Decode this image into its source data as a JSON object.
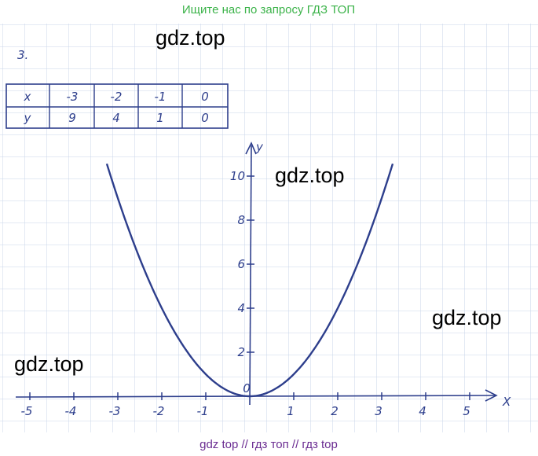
{
  "header": {
    "text": "Ищите нас по запросу ГДЗ ТОП"
  },
  "watermarks": [
    "gdz.top",
    "gdz.top",
    "gdz.top",
    "gdz.top"
  ],
  "problem": {
    "number": "3."
  },
  "table": {
    "rows": [
      [
        "x",
        "-3",
        "-2",
        "-1",
        "0"
      ],
      [
        "y",
        "9",
        "4",
        "1",
        "0"
      ]
    ]
  },
  "graph": {
    "x_axis_label": "X",
    "y_axis_label": "y",
    "origin_label": "0",
    "x_tick_labels": [
      "-5",
      "-4",
      "-3",
      "-2",
      "-1",
      "1",
      "2",
      "3",
      "4",
      "5"
    ],
    "y_tick_labels": [
      "2",
      "4",
      "6",
      "8",
      "10"
    ]
  },
  "footer": {
    "text": "gdz top // гдз топ // гдз top"
  }
}
